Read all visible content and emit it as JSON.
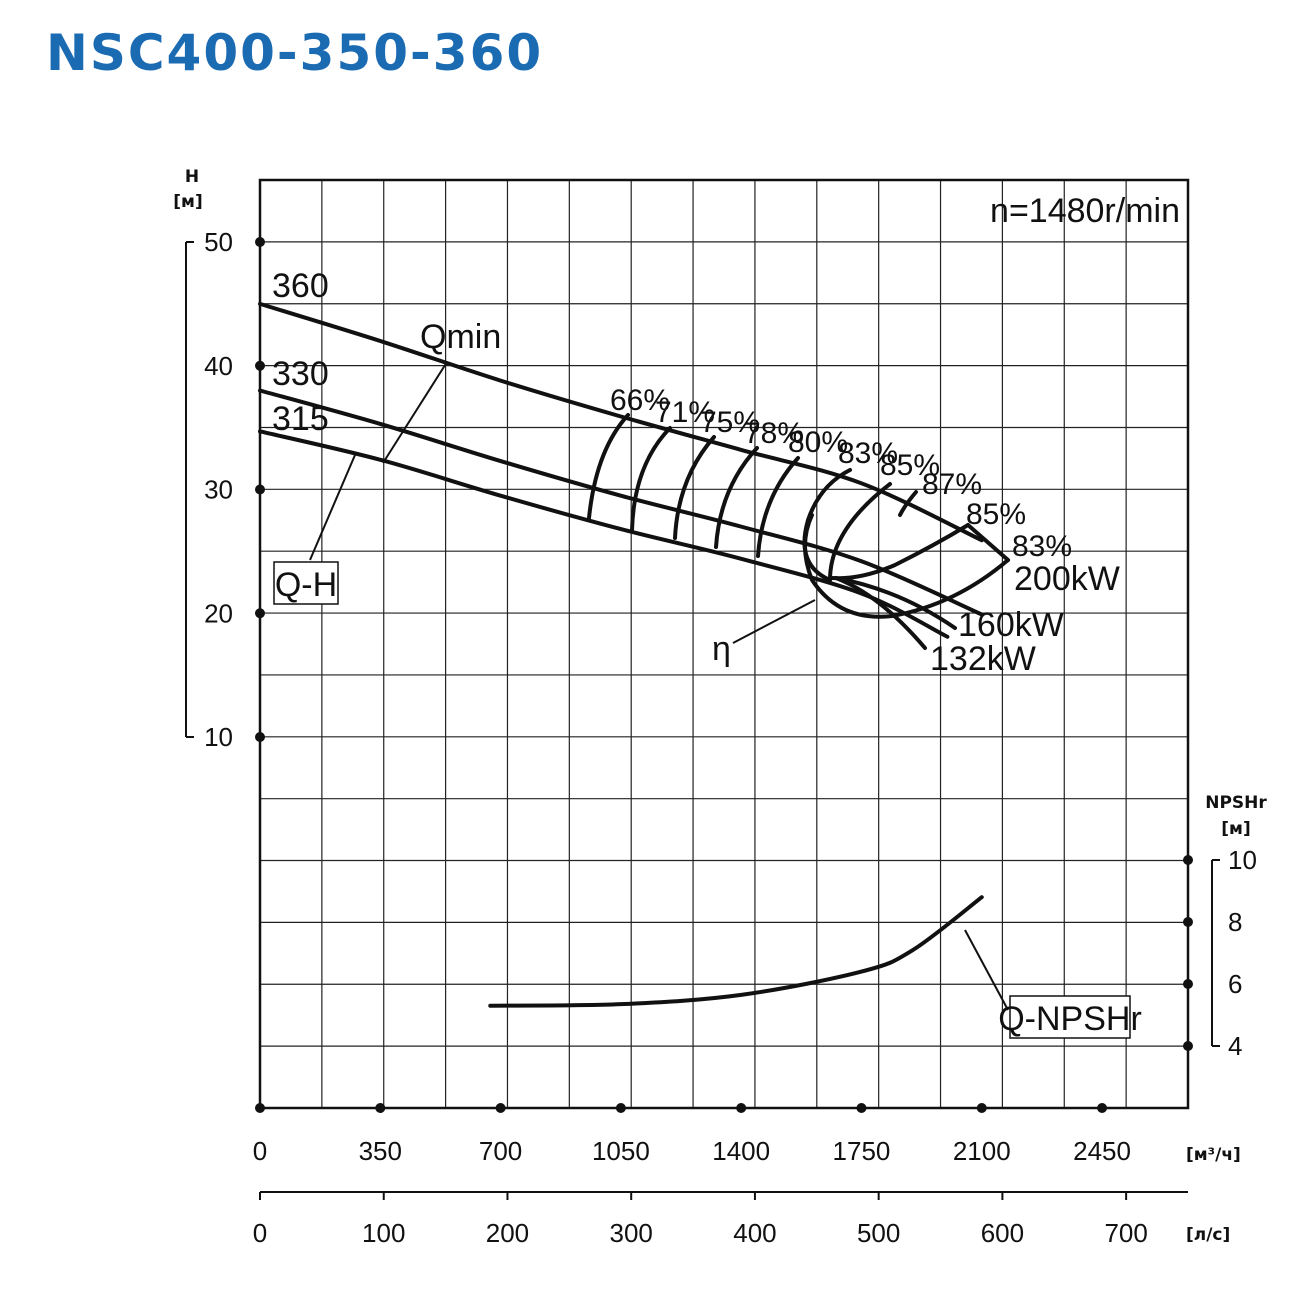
{
  "title": "NSC400-350-360",
  "chart_data": {
    "type": "line",
    "speed_label": "n=1480r/min",
    "x_axis": {
      "label": "[м³/ч]",
      "unit": "m3/h",
      "range": [
        0,
        2700
      ],
      "ticks": [
        0,
        350,
        700,
        1050,
        1400,
        1750,
        2100,
        2450
      ]
    },
    "x2_axis": {
      "label": "[л/с]",
      "unit": "l/s",
      "range": [
        0,
        750
      ],
      "ticks": [
        0,
        100,
        200,
        300,
        400,
        500,
        600,
        700
      ]
    },
    "y_axis": {
      "label_top": "H",
      "label_unit": "[м]",
      "range": [
        10,
        50
      ],
      "ticks": [
        10,
        20,
        30,
        40,
        50
      ]
    },
    "y2_axis": {
      "label_top": "NPSHr",
      "label_unit": "[м]",
      "range": [
        4,
        10
      ],
      "ticks": [
        4,
        6,
        8,
        10
      ]
    },
    "grid": true,
    "series": [
      {
        "name": "360",
        "kind": "Q-H",
        "x": [
          0,
          350,
          700,
          1050,
          1400,
          1750,
          2100
        ],
        "y": [
          45,
          42,
          38.8,
          35.9,
          33.2,
          30.5,
          25.9
        ]
      },
      {
        "name": "330",
        "kind": "Q-H",
        "x": [
          0,
          350,
          700,
          1050,
          1400,
          1750,
          2100
        ],
        "y": [
          38,
          35.3,
          32.3,
          29.5,
          27,
          24.2,
          19.9
        ]
      },
      {
        "name": "315",
        "kind": "Q-H",
        "x": [
          0,
          350,
          700,
          1050,
          1400,
          1750,
          2000
        ],
        "y": [
          34.7,
          32.4,
          29.5,
          26.8,
          24.4,
          21.6,
          18.1
        ]
      },
      {
        "name": "Q-NPSHr",
        "kind": "NPSHr",
        "x": [
          670,
          1050,
          1400,
          1750,
          1900,
          2100
        ],
        "y": [
          5.3,
          5.35,
          5.65,
          6.4,
          7.1,
          8.8
        ]
      }
    ],
    "efficiency_labels": [
      "66%",
      "71%",
      "75%",
      "78%",
      "80%",
      "83%",
      "85%",
      "87%",
      "85%",
      "83%"
    ],
    "power_labels": [
      "200kW",
      "160kW",
      "132kW"
    ],
    "annotations": [
      "Qmin",
      "Q-H",
      "η",
      "Q-NPSHr"
    ]
  }
}
